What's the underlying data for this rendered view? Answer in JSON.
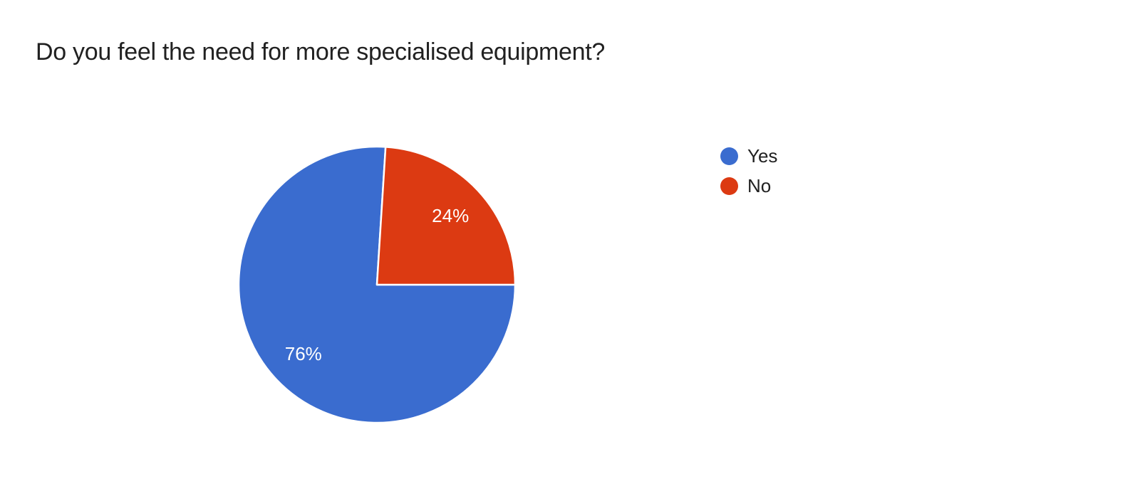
{
  "title": "Do you feel the need for more specialised equipment?",
  "chart_data": {
    "type": "pie",
    "title": "Do you feel the need for more specialised equipment?",
    "categories": [
      "Yes",
      "No"
    ],
    "values": [
      76,
      24
    ],
    "unit": "%",
    "slices": [
      {
        "label": "Yes",
        "value": 76,
        "pct_label": "76%",
        "color": "#3a6ccf"
      },
      {
        "label": "No",
        "value": 24,
        "pct_label": "24%",
        "color": "#dc3a12"
      }
    ],
    "start_angle_deg": 90,
    "direction": "clockwise",
    "legend_position": "right",
    "slice_border_color": "#ffffff",
    "label_color": "#ffffff",
    "title_color": "#212121",
    "background_color": "#ffffff"
  }
}
